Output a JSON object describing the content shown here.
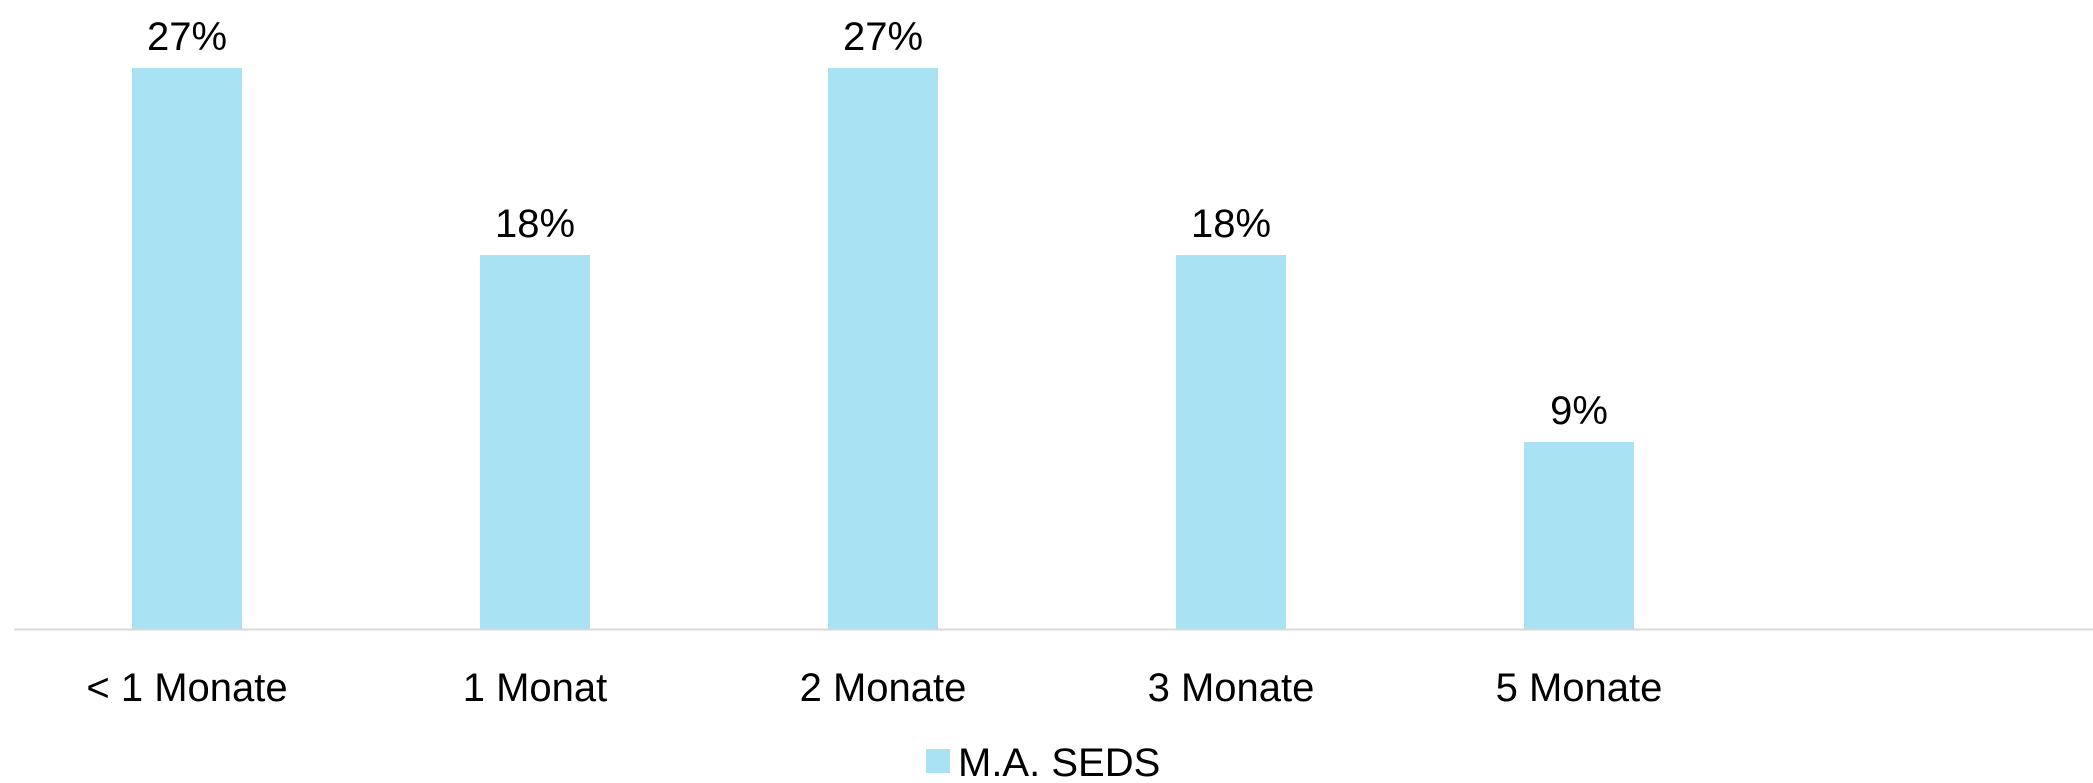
{
  "chart_data": {
    "type": "bar",
    "title": "",
    "xlabel": "",
    "ylabel": "",
    "categories": [
      "< 1 Monate",
      "1 Monat",
      "2 Monate",
      "3 Monate",
      "5 Monate"
    ],
    "series": [
      {
        "name": "M.A. SEDS",
        "values": [
          27,
          18,
          27,
          18,
          9
        ],
        "labels": [
          "27%",
          "18%",
          "27%",
          "18%",
          "9%"
        ],
        "color": "#A8E2F3"
      }
    ],
    "ylim": [
      0,
      27
    ],
    "grid": false,
    "legend_position": "bottom-center",
    "axis_color": "#D9D9D9"
  }
}
